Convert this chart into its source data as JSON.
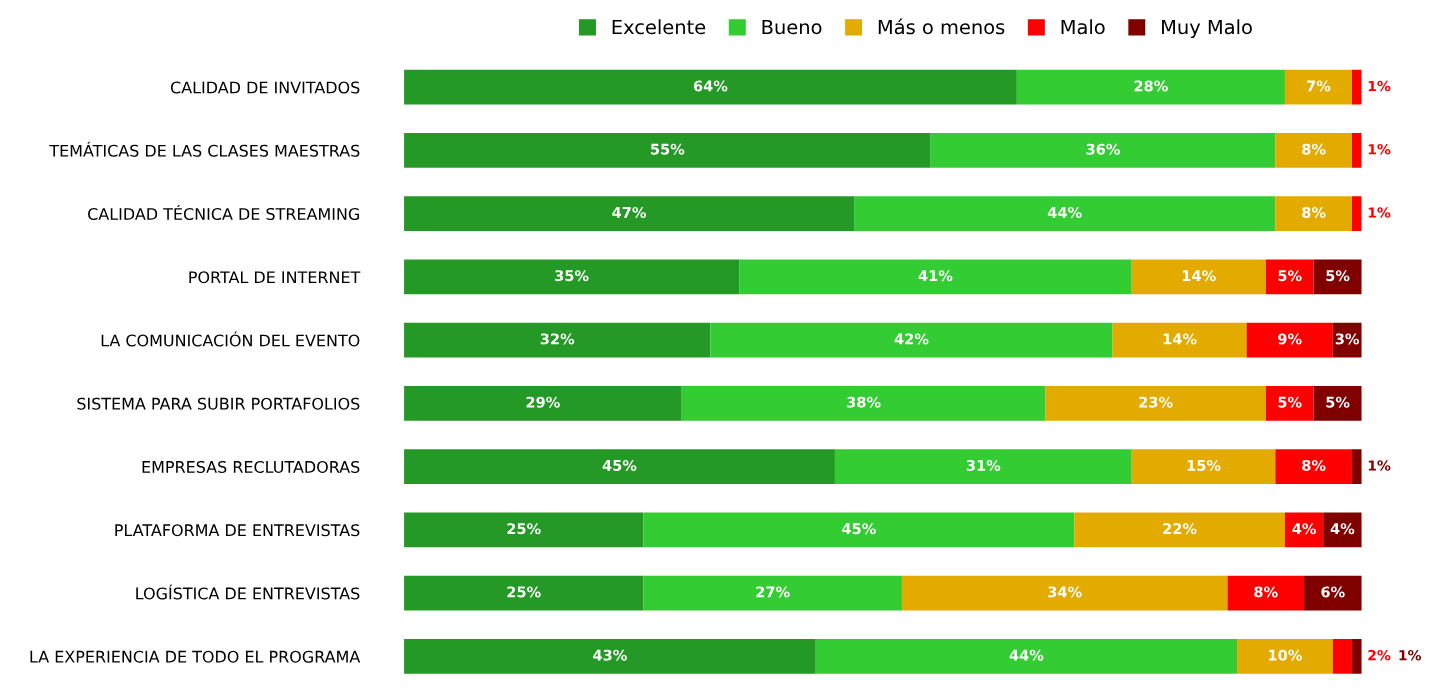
{
  "chart_data": {
    "type": "bar",
    "orientation": "horizontal",
    "stacked": true,
    "legend": "top",
    "grid": false,
    "tick_labels": "y",
    "categories": [
      "CALIDAD DE INVITADOS",
      "TEMÁTICAS DE LAS CLASES MAESTRAS",
      "CALIDAD TÉCNICA DE STREAMING",
      "PORTAL DE INTERNET",
      "LA COMUNICACIÓN DEL EVENTO",
      "SISTEMA PARA SUBIR PORTAFOLIOS",
      "EMPRESAS RECLUTADORAS",
      "PLATAFORMA DE ENTREVISTAS",
      "LOGÍSTICA DE ENTREVISTAS",
      "LA EXPERIENCIA DE TODO EL PROGRAMA"
    ],
    "series": [
      {
        "name": "Excelente",
        "color": "#259925",
        "values": [
          64,
          55,
          47,
          35,
          32,
          29,
          45,
          25,
          25,
          43
        ],
        "value_labels": [
          "64%",
          "55%",
          "47%",
          "35%",
          "32%",
          "29%",
          "45%",
          "25%",
          "25%",
          "43%"
        ]
      },
      {
        "name": "Bueno",
        "color": "#33cc33",
        "values": [
          28,
          36,
          44,
          41,
          42,
          38,
          31,
          45,
          27,
          44
        ],
        "value_labels": [
          "28%",
          "36%",
          "44%",
          "41%",
          "42%",
          "38%",
          "31%",
          "45%",
          "27%",
          "44%"
        ]
      },
      {
        "name": "Más o menos",
        "color": "#e3ab00",
        "values": [
          7,
          8,
          8,
          14,
          14,
          23,
          15,
          22,
          34,
          10
        ],
        "value_labels": [
          "7%",
          "8%",
          "8%",
          "14%",
          "14%",
          "23%",
          "15%",
          "22%",
          "34%",
          "10%"
        ]
      },
      {
        "name": "Malo",
        "color": "#ff0000",
        "values": [
          1,
          1,
          1,
          5,
          9,
          5,
          8,
          4,
          8,
          2
        ],
        "value_labels": [
          "1%",
          "1%",
          "1%",
          "5%",
          "9%",
          "5%",
          "8%",
          "4%",
          "8%",
          "2%"
        ]
      },
      {
        "name": "Muy Malo",
        "color": "#800000",
        "values": [
          0,
          0,
          0,
          5,
          3,
          5,
          1,
          4,
          6,
          1
        ],
        "value_labels": [
          null,
          null,
          null,
          "5%",
          "3%",
          "5%",
          "1%",
          "4%",
          "6%",
          "1%"
        ]
      }
    ]
  }
}
